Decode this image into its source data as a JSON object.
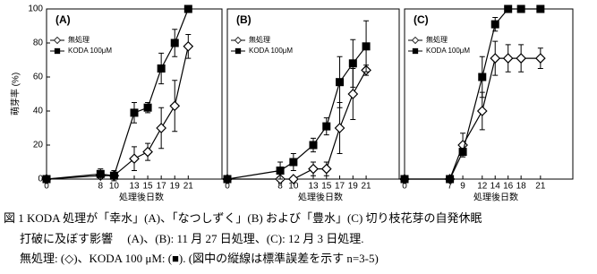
{
  "chart_data": [
    {
      "type": "line",
      "title": "(A)",
      "x_label": "処理後日数",
      "y_label": "萌芽率 (%)",
      "xlim": [
        0,
        26
      ],
      "xticks": [
        0,
        8,
        10,
        13,
        15,
        17,
        19,
        21
      ],
      "ylim": [
        0,
        100
      ],
      "yticks": [
        0,
        20,
        40,
        60,
        80,
        100
      ],
      "x": [
        0,
        8,
        10,
        13,
        15,
        17,
        19,
        21
      ],
      "series": [
        {
          "name": "無処理",
          "color": "#000000",
          "marker": "diamond",
          "values": [
            0,
            2,
            2,
            12,
            16,
            30,
            43,
            78
          ],
          "errors": [
            0,
            0,
            0,
            7,
            5,
            12,
            15,
            7
          ]
        },
        {
          "name": "KODA 100μM",
          "color": "#000000",
          "marker": "square",
          "values": [
            0,
            3,
            2,
            39,
            42,
            65,
            80,
            100
          ],
          "errors": [
            0,
            3,
            3,
            6,
            3,
            9,
            8,
            0
          ]
        }
      ]
    },
    {
      "type": "line",
      "title": "(B)",
      "x_label": "処理後日数",
      "xlim": [
        0,
        26
      ],
      "xticks": [
        0,
        8,
        10,
        13,
        15,
        17,
        19,
        21
      ],
      "ylim": [
        0,
        100
      ],
      "x": [
        0,
        8,
        10,
        13,
        15,
        17,
        19,
        21
      ],
      "series": [
        {
          "name": "無処理",
          "color": "#000000",
          "marker": "diamond",
          "values": [
            0,
            0,
            0,
            6,
            6,
            30,
            50,
            64
          ],
          "errors": [
            0,
            0,
            0,
            4,
            4,
            15,
            15,
            3
          ]
        },
        {
          "name": "KODA 100μM",
          "color": "#000000",
          "marker": "square",
          "values": [
            0,
            5,
            10,
            20,
            31,
            57,
            68,
            78
          ],
          "errors": [
            0,
            5,
            5,
            4,
            5,
            15,
            14,
            15
          ]
        }
      ]
    },
    {
      "type": "line",
      "title": "(C)",
      "x_label": "処理後日数",
      "xlim": [
        0,
        26
      ],
      "xticks": [
        0,
        7,
        9,
        12,
        14,
        16,
        18,
        21
      ],
      "ylim": [
        0,
        100
      ],
      "x": [
        0,
        7,
        9,
        12,
        14,
        16,
        18,
        21
      ],
      "series": [
        {
          "name": "無処理",
          "color": "#000000",
          "marker": "diamond",
          "values": [
            0,
            0,
            20,
            40,
            71,
            71,
            71,
            71
          ],
          "errors": [
            0,
            0,
            7,
            11,
            10,
            8,
            8,
            6
          ]
        },
        {
          "name": "KODA 100μM",
          "color": "#000000",
          "marker": "square",
          "values": [
            0,
            0,
            16,
            60,
            91,
            100,
            100,
            100
          ],
          "errors": [
            0,
            0,
            0,
            12,
            4,
            0,
            0,
            0
          ]
        }
      ]
    }
  ],
  "caption": [
    "図 1 KODA 処理が「幸水」(A)、「なつしずく」(B) および「豊水」(C) 切り枝花芽の自発休眠",
    "打破に及ぼす影響　 (A)、(B): 11 月 27 日処理、(C): 12 月 3 日処理.",
    "無処理: (◇)、KODA 100 μM: (■). (図中の縦線は標準誤差を示す n=3-5)"
  ]
}
